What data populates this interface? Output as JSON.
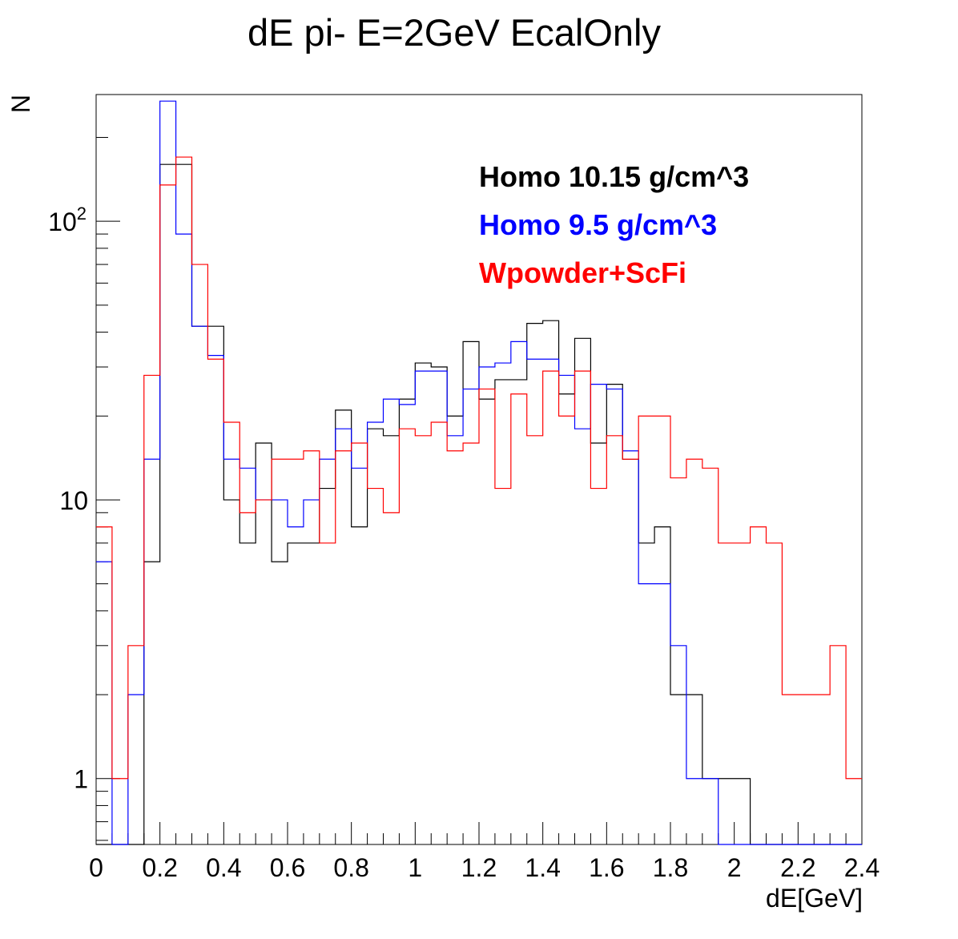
{
  "chart_data": {
    "type": "histogram",
    "title": "dE pi- E=2GeV EcalOnly",
    "xlabel": "dE[GeV]",
    "ylabel": "N",
    "xlim": [
      0,
      2.4
    ],
    "ylim": [
      0.58,
      285
    ],
    "yscale": "log",
    "grid": false,
    "legend_position": "top-right",
    "bin_width": 0.05,
    "x_ticks": [
      0,
      0.2,
      0.4,
      0.6,
      0.8,
      1,
      1.2,
      1.4,
      1.6,
      1.8,
      2,
      2.2,
      2.4
    ],
    "x_tick_labels": [
      "0",
      "0.2",
      "0.4",
      "0.6",
      "0.8",
      "1",
      "1.2",
      "1.4",
      "1.6",
      "1.8",
      "2",
      "2.2",
      "2.4"
    ],
    "y_major_ticks": [
      1,
      10,
      100
    ],
    "y_tick_labels": [
      "1",
      "10",
      "10^2"
    ],
    "series": [
      {
        "name": "Homo 10.15 g/cm^3",
        "color": "#000000",
        "values": [
          0,
          0,
          0,
          6,
          160,
          160,
          42,
          42,
          10,
          7,
          16,
          6,
          7,
          7,
          11,
          21,
          8,
          18,
          17,
          23,
          31,
          30,
          20,
          37,
          23,
          27,
          27,
          43,
          44,
          24,
          38,
          16,
          26,
          14,
          7,
          8,
          2,
          2,
          1,
          1,
          1,
          0,
          0,
          0,
          0,
          0,
          0,
          0
        ]
      },
      {
        "name": "Homo 9.5 g/cm^3",
        "color": "#0000ff",
        "values": [
          6,
          0,
          2,
          14,
          270,
          90,
          42,
          33,
          14,
          13,
          10,
          10,
          8,
          10,
          14,
          18,
          13,
          19,
          23,
          22,
          29,
          29,
          17,
          25,
          30,
          31,
          37,
          32,
          32,
          28,
          18,
          26,
          25,
          15,
          5,
          5,
          3,
          1,
          1,
          0,
          0,
          0,
          0,
          0,
          0,
          0,
          0,
          0
        ]
      },
      {
        "name": "Wpowder+ScFi",
        "color": "#ff0000",
        "values": [
          8,
          1,
          3,
          28,
          135,
          170,
          70,
          32,
          19,
          9,
          10,
          14,
          14,
          15,
          7,
          15,
          16,
          11,
          9,
          18,
          17,
          19,
          15,
          16,
          25,
          11,
          24,
          17,
          29,
          20,
          29,
          11,
          17,
          14,
          20,
          20,
          12,
          14,
          13,
          7,
          7,
          8,
          7,
          2,
          2,
          2,
          3,
          1
        ]
      }
    ]
  }
}
